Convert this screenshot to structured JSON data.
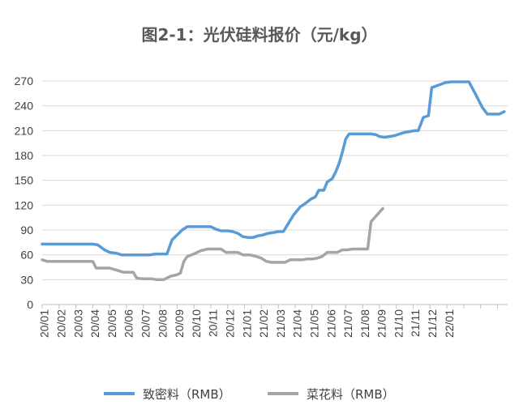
{
  "chart_data": {
    "type": "line",
    "title": "图2-1：光伏硅料报价（元/kg）",
    "xlabel": "",
    "ylabel": "",
    "ylim": [
      0,
      270
    ],
    "yticks": [
      0,
      30,
      60,
      90,
      120,
      150,
      180,
      210,
      240,
      270
    ],
    "x_tick_labels": [
      "20/01",
      "20/02",
      "20/03",
      "20/04",
      "20/05",
      "20/06",
      "20/07",
      "20/08",
      "20/09",
      "20/10",
      "20/11",
      "20/12",
      "21/01",
      "21/02",
      "21/03",
      "21/04",
      "21/05",
      "21/06",
      "21/07",
      "21/08",
      "21/09",
      "21/10",
      "21/11",
      "21/12",
      "22/01"
    ],
    "grid": "horizontal",
    "legend_position": "bottom",
    "series": [
      {
        "name": "致密料（RMB）",
        "color": "#5b9bd5",
        "points": [
          [
            0.0,
            73
          ],
          [
            1.0,
            73
          ],
          [
            2.0,
            73
          ],
          [
            3.0,
            73
          ],
          [
            3.3,
            72
          ],
          [
            3.7,
            66
          ],
          [
            4.0,
            63
          ],
          [
            4.4,
            62
          ],
          [
            4.7,
            60
          ],
          [
            5.0,
            60
          ],
          [
            6.0,
            60
          ],
          [
            6.4,
            60
          ],
          [
            6.7,
            61
          ],
          [
            7.0,
            61
          ],
          [
            7.4,
            61
          ],
          [
            7.7,
            78
          ],
          [
            8.0,
            84
          ],
          [
            8.3,
            90
          ],
          [
            8.6,
            94
          ],
          [
            9.0,
            94
          ],
          [
            9.5,
            94
          ],
          [
            10.0,
            94
          ],
          [
            10.3,
            91
          ],
          [
            10.6,
            89
          ],
          [
            11.0,
            89
          ],
          [
            11.3,
            88
          ],
          [
            11.6,
            86
          ],
          [
            11.9,
            82
          ],
          [
            12.2,
            81
          ],
          [
            12.5,
            81
          ],
          [
            12.8,
            83
          ],
          [
            13.1,
            84
          ],
          [
            13.4,
            86
          ],
          [
            13.7,
            87
          ],
          [
            14.0,
            88
          ],
          [
            14.3,
            88
          ],
          [
            14.6,
            98
          ],
          [
            14.9,
            108
          ],
          [
            15.3,
            118
          ],
          [
            15.6,
            122
          ],
          [
            15.9,
            127
          ],
          [
            16.2,
            130
          ],
          [
            16.4,
            138
          ],
          [
            16.7,
            138
          ],
          [
            16.9,
            148
          ],
          [
            17.2,
            152
          ],
          [
            17.4,
            160
          ],
          [
            17.6,
            170
          ],
          [
            17.8,
            184
          ],
          [
            18.0,
            200
          ],
          [
            18.2,
            206
          ],
          [
            18.6,
            206
          ],
          [
            19.0,
            206
          ],
          [
            19.5,
            206
          ],
          [
            19.8,
            205
          ],
          [
            20.0,
            203
          ],
          [
            20.3,
            202
          ],
          [
            20.6,
            203
          ],
          [
            20.9,
            204
          ],
          [
            21.2,
            206
          ],
          [
            21.5,
            208
          ],
          [
            21.8,
            209
          ],
          [
            22.1,
            210
          ],
          [
            22.3,
            210
          ],
          [
            22.6,
            226
          ],
          [
            22.9,
            228
          ],
          [
            23.1,
            262
          ],
          [
            23.5,
            265
          ],
          [
            23.9,
            268
          ],
          [
            24.3,
            269
          ],
          [
            24.8,
            269
          ],
          [
            25.3,
            269
          ],
          [
            25.7,
            254
          ],
          [
            26.1,
            238
          ],
          [
            26.4,
            230
          ],
          [
            26.8,
            230
          ],
          [
            27.1,
            230
          ],
          [
            27.4,
            233
          ]
        ]
      },
      {
        "name": "菜花料（RMB）",
        "color": "#a5a5a5",
        "points": [
          [
            0.0,
            54
          ],
          [
            0.3,
            52
          ],
          [
            1.0,
            52
          ],
          [
            2.0,
            52
          ],
          [
            3.0,
            52
          ],
          [
            3.2,
            44
          ],
          [
            4.0,
            44
          ],
          [
            4.5,
            41
          ],
          [
            4.8,
            39
          ],
          [
            5.2,
            39
          ],
          [
            5.4,
            39
          ],
          [
            5.6,
            32
          ],
          [
            6.0,
            31
          ],
          [
            6.5,
            31
          ],
          [
            6.8,
            30
          ],
          [
            7.2,
            30
          ],
          [
            7.6,
            34
          ],
          [
            8.0,
            36
          ],
          [
            8.2,
            38
          ],
          [
            8.4,
            52
          ],
          [
            8.6,
            58
          ],
          [
            9.0,
            61
          ],
          [
            9.4,
            65
          ],
          [
            9.8,
            67
          ],
          [
            10.2,
            67
          ],
          [
            10.6,
            67
          ],
          [
            10.9,
            63
          ],
          [
            11.2,
            63
          ],
          [
            11.6,
            63
          ],
          [
            11.9,
            60
          ],
          [
            12.3,
            60
          ],
          [
            12.7,
            58
          ],
          [
            13.0,
            56
          ],
          [
            13.3,
            52
          ],
          [
            13.6,
            51
          ],
          [
            14.0,
            51
          ],
          [
            14.4,
            51
          ],
          [
            14.7,
            54
          ],
          [
            15.0,
            54
          ],
          [
            15.4,
            54
          ],
          [
            15.7,
            55
          ],
          [
            16.0,
            55
          ],
          [
            16.3,
            56
          ],
          [
            16.6,
            58
          ],
          [
            16.9,
            63
          ],
          [
            17.2,
            63
          ],
          [
            17.5,
            63
          ],
          [
            17.8,
            66
          ],
          [
            18.1,
            66
          ],
          [
            18.4,
            67
          ],
          [
            18.7,
            67
          ],
          [
            19.0,
            67
          ],
          [
            19.3,
            67
          ],
          [
            19.5,
            100
          ],
          [
            19.8,
            107
          ],
          [
            20.2,
            116
          ]
        ]
      }
    ]
  }
}
